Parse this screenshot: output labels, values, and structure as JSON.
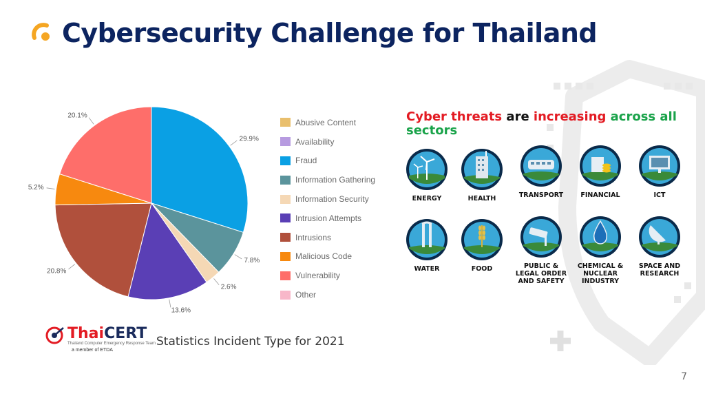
{
  "slide": {
    "title": "Cybersecurity Challenge for Thailand",
    "page_number": "7",
    "accent_color": "#f5a623",
    "title_color": "#0c2460"
  },
  "chart_data": {
    "type": "pie",
    "title": "",
    "legend_position": "right",
    "slices": [
      {
        "name": "Abusive Content",
        "value": 0,
        "label": "",
        "color": "#e9bf6d"
      },
      {
        "name": "Availability",
        "value": 0,
        "label": "",
        "color": "#b79be0"
      },
      {
        "name": "Fraud",
        "value": 29.9,
        "label": "29.9%",
        "color": "#0aa0e4"
      },
      {
        "name": "Information Gathering",
        "value": 7.8,
        "label": "7.8%",
        "color": "#5b949c"
      },
      {
        "name": "Information Security",
        "value": 2.6,
        "label": "2.6%",
        "color": "#f5d8b5"
      },
      {
        "name": "Intrusion Attempts",
        "value": 13.6,
        "label": "13.6%",
        "color": "#5a3fb5"
      },
      {
        "name": "Intrusions",
        "value": 20.8,
        "label": "20.8%",
        "color": "#b0503c"
      },
      {
        "name": "Malicious Code",
        "value": 5.2,
        "label": "5.2%",
        "color": "#f7890f"
      },
      {
        "name": "Vulnerability",
        "value": 20.1,
        "label": "20.1%",
        "color": "#fe6e6a"
      },
      {
        "name": "Other",
        "value": 0,
        "label": "",
        "color": "#f8b7c9"
      }
    ]
  },
  "threats": {
    "heading_parts": [
      {
        "text": "Cyber threats",
        "color": "#e31b23"
      },
      {
        "text": " are ",
        "color": "#111111"
      },
      {
        "text": "increasing",
        "color": "#e31b23"
      },
      {
        "text": " across all sectors",
        "color": "#1aa34a"
      }
    ],
    "sectors": [
      {
        "name": "ENERGY",
        "icon": "wind-turbine-icon"
      },
      {
        "name": "HEALTH",
        "icon": "hospital-building-icon"
      },
      {
        "name": "TRANSPORT",
        "icon": "train-icon"
      },
      {
        "name": "FINANCIAL",
        "icon": "coins-icon"
      },
      {
        "name": "ICT",
        "icon": "computer-icon"
      },
      {
        "name": "WATER",
        "icon": "water-tower-icon"
      },
      {
        "name": "FOOD",
        "icon": "wheat-icon"
      },
      {
        "name": "PUBLIC & LEGAL ORDER AND SAFETY",
        "icon": "cctv-camera-icon"
      },
      {
        "name": "CHEMICAL & NUCLEAR INDUSTRY",
        "icon": "chemical-drop-icon"
      },
      {
        "name": "SPACE AND RESEARCH",
        "icon": "satellite-dish-icon"
      }
    ]
  },
  "logo": {
    "name_part1": "Thai",
    "name_part2": "CERT",
    "name_color1": "#e31b23",
    "name_color2": "#1a2b5c",
    "subtitle": "Thailand Computer Emergency Response Team",
    "member": "a member of ETDA"
  },
  "caption": "Statistics Incident Type for 2021"
}
